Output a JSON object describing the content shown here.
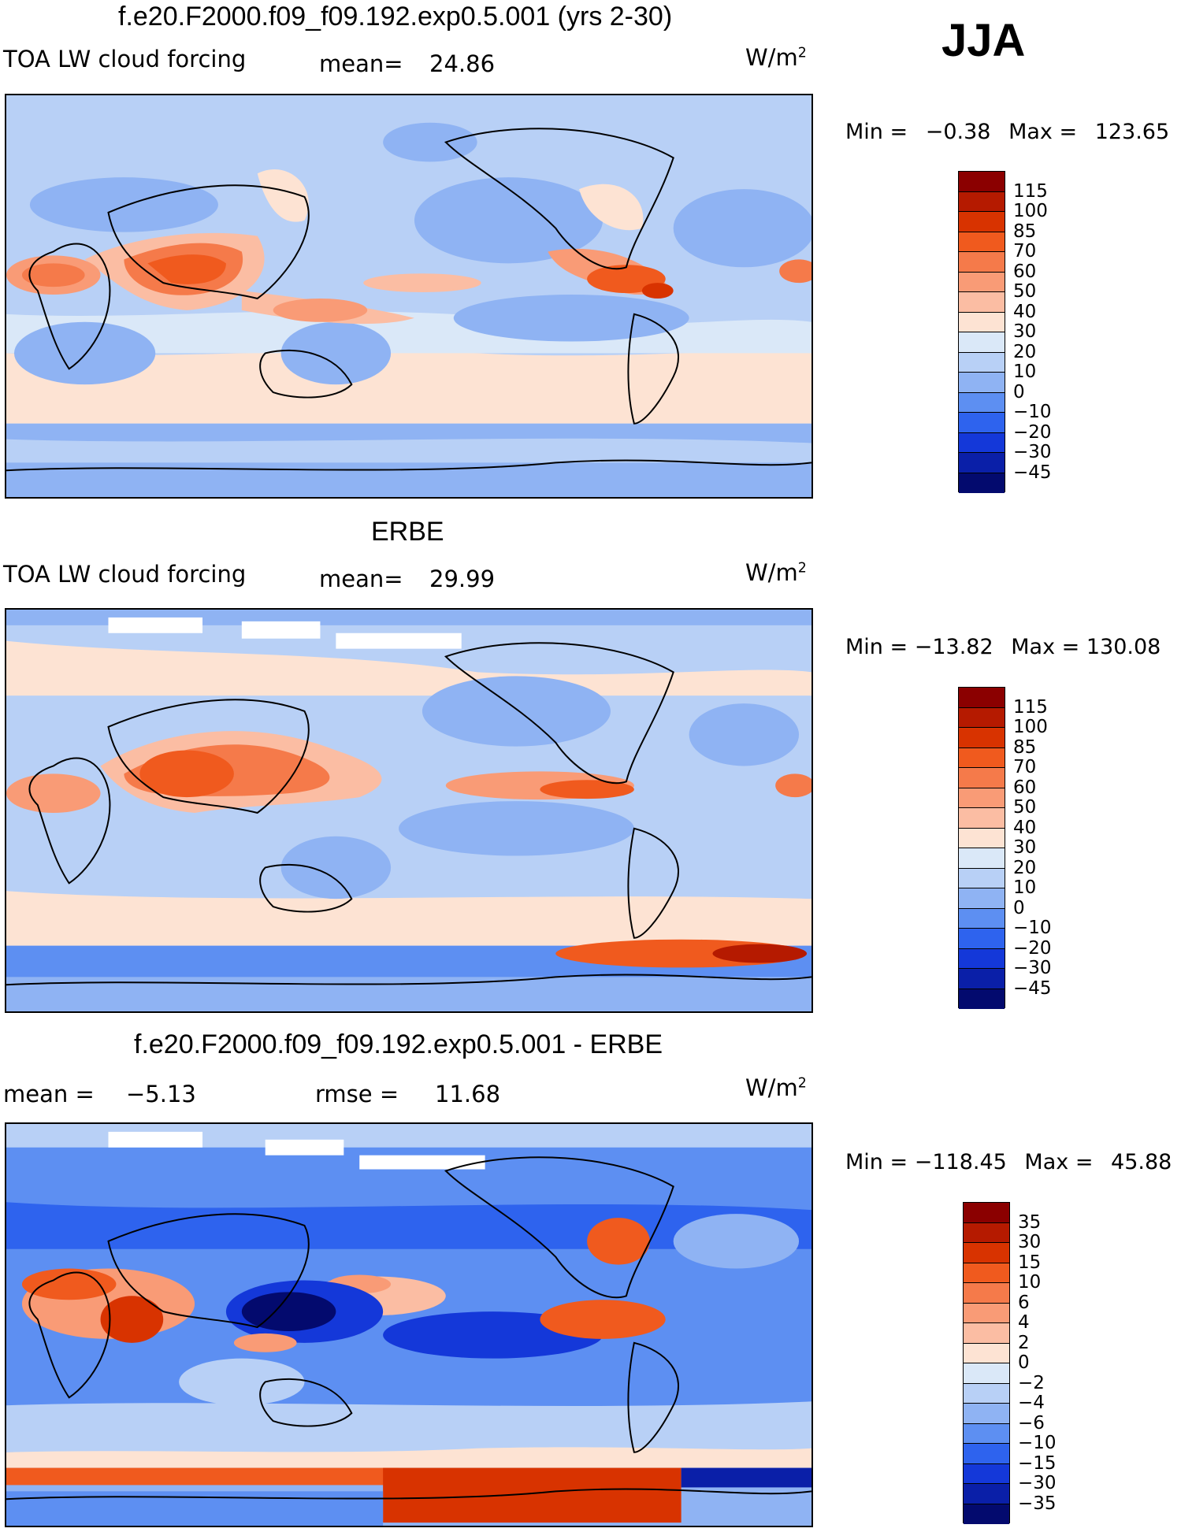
{
  "season": "JJA",
  "panels": [
    {
      "title": "f.e20.F2000.f09_f09.192.exp0.5.001 (yrs 2-30)",
      "left_label": "TOA LW cloud forcing",
      "center_label": "mean=",
      "center_value": "24.86",
      "units": "W/m",
      "units_sup": "2",
      "min_label": "Min",
      "min_value": "−0.38",
      "max_label": "Max",
      "max_value": "123.65",
      "colorbar_labels": [
        "115",
        "100",
        "85",
        "70",
        "60",
        "50",
        "40",
        "30",
        "20",
        "10",
        "0",
        "−10",
        "−20",
        "−30",
        "−45"
      ],
      "colors": [
        "#8b0000",
        "#b51a00",
        "#d83300",
        "#f05a1e",
        "#f57a4a",
        "#f99b76",
        "#fbbda3",
        "#fde3d3",
        "#dae8f8",
        "#b8d0f6",
        "#8fb3f3",
        "#5d8ff2",
        "#2e63ee",
        "#1438d9",
        "#0a1fa8",
        "#030a6e"
      ]
    },
    {
      "title": "ERBE",
      "left_label": "TOA LW cloud forcing",
      "center_label": "mean=",
      "center_value": "29.99",
      "units": "W/m",
      "units_sup": "2",
      "min_label": "Min",
      "min_value": "−13.82",
      "max_label": "Max",
      "max_value": "130.08",
      "colorbar_labels": [
        "115",
        "100",
        "85",
        "70",
        "60",
        "50",
        "40",
        "30",
        "20",
        "10",
        "0",
        "−10",
        "−20",
        "−30",
        "−45"
      ],
      "colors": [
        "#8b0000",
        "#b51a00",
        "#d83300",
        "#f05a1e",
        "#f57a4a",
        "#f99b76",
        "#fbbda3",
        "#fde3d3",
        "#dae8f8",
        "#b8d0f6",
        "#8fb3f3",
        "#5d8ff2",
        "#2e63ee",
        "#1438d9",
        "#0a1fa8",
        "#030a6e"
      ]
    },
    {
      "title": "f.e20.F2000.f09_f09.192.exp0.5.001 - ERBE",
      "left_label": "mean =",
      "left_value": "−5.13",
      "center_label": "rmse =",
      "center_value": "11.68",
      "units": "W/m",
      "units_sup": "2",
      "min_label": "Min",
      "min_value": "−118.45",
      "max_label": "Max",
      "max_value": "45.88",
      "colorbar_labels": [
        "35",
        "30",
        "15",
        "10",
        "6",
        "4",
        "2",
        "0",
        "−2",
        "−4",
        "−6",
        "−10",
        "−15",
        "−30",
        "−35"
      ],
      "colors": [
        "#8b0000",
        "#b51a00",
        "#d83300",
        "#f05a1e",
        "#f57a4a",
        "#f99b76",
        "#fbbda3",
        "#fde3d3",
        "#dae8f8",
        "#b8d0f6",
        "#8fb3f3",
        "#5d8ff2",
        "#2e63ee",
        "#1438d9",
        "#0a1fa8",
        "#030a6e"
      ]
    }
  ]
}
